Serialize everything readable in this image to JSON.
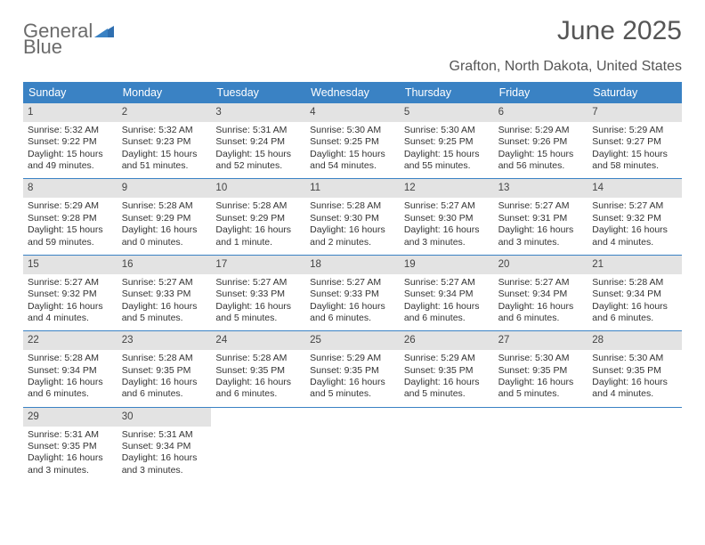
{
  "brand": {
    "name1": "General",
    "name2": "Blue"
  },
  "title": "June 2025",
  "location": "Grafton, North Dakota, United States",
  "header_bg": "#3a82c4",
  "daynum_bg": "#e3e3e3",
  "weekdays": [
    "Sunday",
    "Monday",
    "Tuesday",
    "Wednesday",
    "Thursday",
    "Friday",
    "Saturday"
  ],
  "weeks": [
    [
      {
        "n": "1",
        "sr": "Sunrise: 5:32 AM",
        "ss": "Sunset: 9:22 PM",
        "d1": "Daylight: 15 hours",
        "d2": "and 49 minutes."
      },
      {
        "n": "2",
        "sr": "Sunrise: 5:32 AM",
        "ss": "Sunset: 9:23 PM",
        "d1": "Daylight: 15 hours",
        "d2": "and 51 minutes."
      },
      {
        "n": "3",
        "sr": "Sunrise: 5:31 AM",
        "ss": "Sunset: 9:24 PM",
        "d1": "Daylight: 15 hours",
        "d2": "and 52 minutes."
      },
      {
        "n": "4",
        "sr": "Sunrise: 5:30 AM",
        "ss": "Sunset: 9:25 PM",
        "d1": "Daylight: 15 hours",
        "d2": "and 54 minutes."
      },
      {
        "n": "5",
        "sr": "Sunrise: 5:30 AM",
        "ss": "Sunset: 9:25 PM",
        "d1": "Daylight: 15 hours",
        "d2": "and 55 minutes."
      },
      {
        "n": "6",
        "sr": "Sunrise: 5:29 AM",
        "ss": "Sunset: 9:26 PM",
        "d1": "Daylight: 15 hours",
        "d2": "and 56 minutes."
      },
      {
        "n": "7",
        "sr": "Sunrise: 5:29 AM",
        "ss": "Sunset: 9:27 PM",
        "d1": "Daylight: 15 hours",
        "d2": "and 58 minutes."
      }
    ],
    [
      {
        "n": "8",
        "sr": "Sunrise: 5:29 AM",
        "ss": "Sunset: 9:28 PM",
        "d1": "Daylight: 15 hours",
        "d2": "and 59 minutes."
      },
      {
        "n": "9",
        "sr": "Sunrise: 5:28 AM",
        "ss": "Sunset: 9:29 PM",
        "d1": "Daylight: 16 hours",
        "d2": "and 0 minutes."
      },
      {
        "n": "10",
        "sr": "Sunrise: 5:28 AM",
        "ss": "Sunset: 9:29 PM",
        "d1": "Daylight: 16 hours",
        "d2": "and 1 minute."
      },
      {
        "n": "11",
        "sr": "Sunrise: 5:28 AM",
        "ss": "Sunset: 9:30 PM",
        "d1": "Daylight: 16 hours",
        "d2": "and 2 minutes."
      },
      {
        "n": "12",
        "sr": "Sunrise: 5:27 AM",
        "ss": "Sunset: 9:30 PM",
        "d1": "Daylight: 16 hours",
        "d2": "and 3 minutes."
      },
      {
        "n": "13",
        "sr": "Sunrise: 5:27 AM",
        "ss": "Sunset: 9:31 PM",
        "d1": "Daylight: 16 hours",
        "d2": "and 3 minutes."
      },
      {
        "n": "14",
        "sr": "Sunrise: 5:27 AM",
        "ss": "Sunset: 9:32 PM",
        "d1": "Daylight: 16 hours",
        "d2": "and 4 minutes."
      }
    ],
    [
      {
        "n": "15",
        "sr": "Sunrise: 5:27 AM",
        "ss": "Sunset: 9:32 PM",
        "d1": "Daylight: 16 hours",
        "d2": "and 4 minutes."
      },
      {
        "n": "16",
        "sr": "Sunrise: 5:27 AM",
        "ss": "Sunset: 9:33 PM",
        "d1": "Daylight: 16 hours",
        "d2": "and 5 minutes."
      },
      {
        "n": "17",
        "sr": "Sunrise: 5:27 AM",
        "ss": "Sunset: 9:33 PM",
        "d1": "Daylight: 16 hours",
        "d2": "and 5 minutes."
      },
      {
        "n": "18",
        "sr": "Sunrise: 5:27 AM",
        "ss": "Sunset: 9:33 PM",
        "d1": "Daylight: 16 hours",
        "d2": "and 6 minutes."
      },
      {
        "n": "19",
        "sr": "Sunrise: 5:27 AM",
        "ss": "Sunset: 9:34 PM",
        "d1": "Daylight: 16 hours",
        "d2": "and 6 minutes."
      },
      {
        "n": "20",
        "sr": "Sunrise: 5:27 AM",
        "ss": "Sunset: 9:34 PM",
        "d1": "Daylight: 16 hours",
        "d2": "and 6 minutes."
      },
      {
        "n": "21",
        "sr": "Sunrise: 5:28 AM",
        "ss": "Sunset: 9:34 PM",
        "d1": "Daylight: 16 hours",
        "d2": "and 6 minutes."
      }
    ],
    [
      {
        "n": "22",
        "sr": "Sunrise: 5:28 AM",
        "ss": "Sunset: 9:34 PM",
        "d1": "Daylight: 16 hours",
        "d2": "and 6 minutes."
      },
      {
        "n": "23",
        "sr": "Sunrise: 5:28 AM",
        "ss": "Sunset: 9:35 PM",
        "d1": "Daylight: 16 hours",
        "d2": "and 6 minutes."
      },
      {
        "n": "24",
        "sr": "Sunrise: 5:28 AM",
        "ss": "Sunset: 9:35 PM",
        "d1": "Daylight: 16 hours",
        "d2": "and 6 minutes."
      },
      {
        "n": "25",
        "sr": "Sunrise: 5:29 AM",
        "ss": "Sunset: 9:35 PM",
        "d1": "Daylight: 16 hours",
        "d2": "and 5 minutes."
      },
      {
        "n": "26",
        "sr": "Sunrise: 5:29 AM",
        "ss": "Sunset: 9:35 PM",
        "d1": "Daylight: 16 hours",
        "d2": "and 5 minutes."
      },
      {
        "n": "27",
        "sr": "Sunrise: 5:30 AM",
        "ss": "Sunset: 9:35 PM",
        "d1": "Daylight: 16 hours",
        "d2": "and 5 minutes."
      },
      {
        "n": "28",
        "sr": "Sunrise: 5:30 AM",
        "ss": "Sunset: 9:35 PM",
        "d1": "Daylight: 16 hours",
        "d2": "and 4 minutes."
      }
    ],
    [
      {
        "n": "29",
        "sr": "Sunrise: 5:31 AM",
        "ss": "Sunset: 9:35 PM",
        "d1": "Daylight: 16 hours",
        "d2": "and 3 minutes."
      },
      {
        "n": "30",
        "sr": "Sunrise: 5:31 AM",
        "ss": "Sunset: 9:34 PM",
        "d1": "Daylight: 16 hours",
        "d2": "and 3 minutes."
      },
      null,
      null,
      null,
      null,
      null
    ]
  ]
}
